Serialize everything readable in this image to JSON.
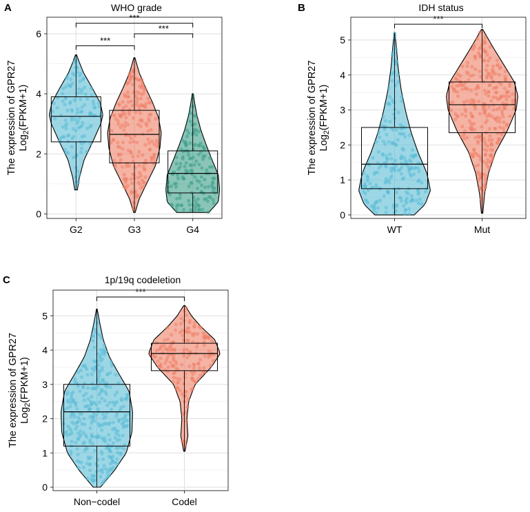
{
  "chart_data": [
    {
      "panel": "A",
      "type": "violin",
      "title": "WHO grade",
      "ylabel_line1": "The expression of GPR27",
      "ylabel_line2_main": "Log",
      "ylabel_line2_sub": "2",
      "ylabel_line2_tail": "(FPKM+1)",
      "ylim": [
        -0.15,
        6.55
      ],
      "yticks": [
        0,
        2,
        4,
        6
      ],
      "categories": [
        "G2",
        "G3",
        "G4"
      ],
      "colors": [
        "#5bbcd6",
        "#ef8068",
        "#3c9e88"
      ],
      "groups": [
        {
          "name": "G2",
          "min": 0.8,
          "q1": 2.4,
          "median": 3.25,
          "q3": 3.9,
          "max": 5.3,
          "n": 120,
          "density": [
            [
              0.8,
              0.05
            ],
            [
              1.2,
              0.12
            ],
            [
              1.8,
              0.3
            ],
            [
              2.4,
              0.62
            ],
            [
              3.0,
              0.92
            ],
            [
              3.3,
              1.0
            ],
            [
              3.7,
              0.9
            ],
            [
              4.2,
              0.6
            ],
            [
              4.7,
              0.28
            ],
            [
              5.1,
              0.1
            ],
            [
              5.3,
              0.02
            ]
          ]
        },
        {
          "name": "G3",
          "min": 0.05,
          "q1": 1.7,
          "median": 2.65,
          "q3": 3.45,
          "max": 5.2,
          "n": 200,
          "density": [
            [
              0.05,
              0.03
            ],
            [
              0.5,
              0.18
            ],
            [
              1.0,
              0.45
            ],
            [
              1.6,
              0.78
            ],
            [
              2.2,
              0.95
            ],
            [
              2.7,
              1.0
            ],
            [
              3.2,
              0.9
            ],
            [
              3.7,
              0.68
            ],
            [
              4.2,
              0.42
            ],
            [
              4.7,
              0.18
            ],
            [
              5.2,
              0.02
            ]
          ]
        },
        {
          "name": "G4",
          "min": 0.05,
          "q1": 0.7,
          "median": 1.35,
          "q3": 2.1,
          "max": 4.0,
          "n": 150,
          "density": [
            [
              0.05,
              0.6
            ],
            [
              0.4,
              0.95
            ],
            [
              0.8,
              1.0
            ],
            [
              1.3,
              0.95
            ],
            [
              1.8,
              0.72
            ],
            [
              2.3,
              0.5
            ],
            [
              2.8,
              0.3
            ],
            [
              3.3,
              0.15
            ],
            [
              3.7,
              0.07
            ],
            [
              4.0,
              0.02
            ]
          ]
        }
      ],
      "significance": [
        {
          "from": 0,
          "to": 1,
          "y": 5.6,
          "label": "***"
        },
        {
          "from": 1,
          "to": 2,
          "y": 6.0,
          "label": "***"
        },
        {
          "from": 0,
          "to": 2,
          "y": 6.35,
          "label": "***"
        }
      ]
    },
    {
      "panel": "B",
      "type": "violin",
      "title": "IDH status",
      "ylabel_line1": "The expression of GPR27",
      "ylabel_line2_main": "Log",
      "ylabel_line2_sub": "2",
      "ylabel_line2_tail": "(FPKM+1)",
      "ylim": [
        -0.1,
        5.65
      ],
      "yticks": [
        0,
        1,
        2,
        3,
        4,
        5
      ],
      "categories": [
        "WT",
        "Mut"
      ],
      "colors": [
        "#5bbcd6",
        "#ef8068"
      ],
      "groups": [
        {
          "name": "WT",
          "min": 0.0,
          "q1": 0.75,
          "median": 1.45,
          "q3": 2.5,
          "max": 5.2,
          "n": 220,
          "density": [
            [
              0.0,
              0.55
            ],
            [
              0.3,
              0.85
            ],
            [
              0.7,
              1.0
            ],
            [
              1.2,
              0.9
            ],
            [
              1.8,
              0.65
            ],
            [
              2.4,
              0.45
            ],
            [
              3.0,
              0.3
            ],
            [
              3.6,
              0.18
            ],
            [
              4.2,
              0.1
            ],
            [
              4.8,
              0.05
            ],
            [
              5.2,
              0.01
            ]
          ]
        },
        {
          "name": "Mut",
          "min": 0.05,
          "q1": 2.35,
          "median": 3.15,
          "q3": 3.8,
          "max": 5.3,
          "n": 300,
          "density": [
            [
              0.05,
              0.02
            ],
            [
              0.6,
              0.07
            ],
            [
              1.2,
              0.18
            ],
            [
              1.8,
              0.38
            ],
            [
              2.4,
              0.7
            ],
            [
              3.0,
              0.95
            ],
            [
              3.4,
              1.0
            ],
            [
              3.8,
              0.9
            ],
            [
              4.3,
              0.6
            ],
            [
              4.8,
              0.3
            ],
            [
              5.3,
              0.02
            ]
          ]
        }
      ],
      "significance": [
        {
          "from": 0,
          "to": 1,
          "y": 5.45,
          "label": "***"
        }
      ]
    },
    {
      "panel": "C",
      "type": "violin",
      "title": "1p/19q codeletion",
      "ylabel_line1": "The expression of GPR27",
      "ylabel_line2_main": "Log",
      "ylabel_line2_sub": "2",
      "ylabel_line2_tail": "(FPKM+1)",
      "ylim": [
        -0.1,
        5.75
      ],
      "yticks": [
        0,
        1,
        2,
        3,
        4,
        5
      ],
      "categories": [
        "Non−codel",
        "Codel"
      ],
      "colors": [
        "#5bbcd6",
        "#ef8068"
      ],
      "groups": [
        {
          "name": "Non−codel",
          "min": 0.0,
          "q1": 1.2,
          "median": 2.2,
          "q3": 3.0,
          "max": 5.2,
          "n": 330,
          "density": [
            [
              0.0,
              0.1
            ],
            [
              0.5,
              0.5
            ],
            [
              1.0,
              0.82
            ],
            [
              1.6,
              0.98
            ],
            [
              2.2,
              1.0
            ],
            [
              2.8,
              0.9
            ],
            [
              3.3,
              0.62
            ],
            [
              3.8,
              0.35
            ],
            [
              4.3,
              0.18
            ],
            [
              4.8,
              0.08
            ],
            [
              5.2,
              0.01
            ]
          ]
        },
        {
          "name": "Codel",
          "min": 1.05,
          "q1": 3.4,
          "median": 3.9,
          "q3": 4.2,
          "max": 5.3,
          "n": 170,
          "density": [
            [
              1.05,
              0.02
            ],
            [
              1.5,
              0.1
            ],
            [
              2.0,
              0.07
            ],
            [
              2.5,
              0.12
            ],
            [
              3.0,
              0.3
            ],
            [
              3.5,
              0.75
            ],
            [
              3.9,
              1.0
            ],
            [
              4.3,
              0.85
            ],
            [
              4.7,
              0.45
            ],
            [
              5.0,
              0.2
            ],
            [
              5.3,
              0.02
            ]
          ]
        }
      ],
      "significance": [
        {
          "from": 0,
          "to": 1,
          "y": 5.55,
          "label": "***"
        }
      ]
    }
  ]
}
